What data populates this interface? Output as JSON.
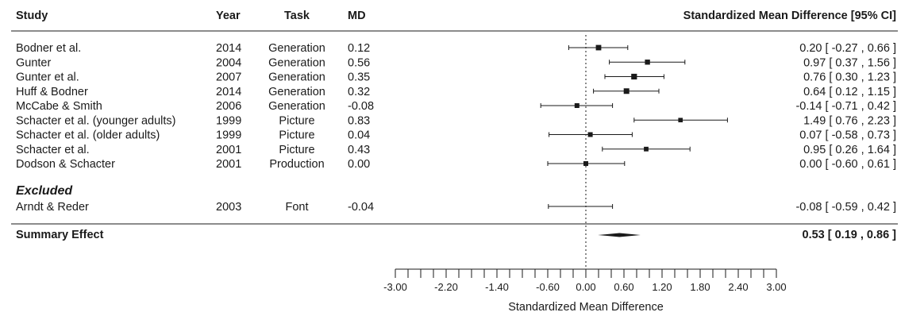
{
  "chart_data": {
    "type": "forest",
    "columns": {
      "study": "Study",
      "year": "Year",
      "task": "Task",
      "md": "MD",
      "effect": "Standardized Mean Difference [95% CI]"
    },
    "studies": [
      {
        "study": "Bodner et al.",
        "year": "2014",
        "task": "Generation",
        "md": "0.12",
        "est": 0.2,
        "lo": -0.27,
        "hi": 0.66,
        "ci_text": "0.20 [ -0.27 , 0.66 ]",
        "weight": 0.7
      },
      {
        "study": "Gunter",
        "year": "2004",
        "task": "Generation",
        "md": "0.56",
        "est": 0.97,
        "lo": 0.37,
        "hi": 1.56,
        "ci_text": "0.97 [  0.37 , 1.56 ]",
        "weight": 0.6
      },
      {
        "study": "Gunter et al.",
        "year": "2007",
        "task": "Generation",
        "md": "0.35",
        "est": 0.76,
        "lo": 0.3,
        "hi": 1.23,
        "ci_text": "0.76 [  0.30 , 1.23 ]",
        "weight": 0.8
      },
      {
        "study": "Huff & Bodner",
        "year": "2014",
        "task": "Generation",
        "md": "0.32",
        "est": 0.64,
        "lo": 0.12,
        "hi": 1.15,
        "ci_text": "0.64 [  0.12 , 1.15 ]",
        "weight": 0.75
      },
      {
        "study": "McCabe & Smith",
        "year": "2006",
        "task": "Generation",
        "md": "-0.08",
        "est": -0.14,
        "lo": -0.71,
        "hi": 0.42,
        "ci_text": "-0.14 [ -0.71 , 0.42 ]",
        "weight": 0.5
      },
      {
        "study": "Schacter et al. (younger adults)",
        "year": "1999",
        "task": "Picture",
        "md": "0.83",
        "est": 1.49,
        "lo": 0.76,
        "hi": 2.23,
        "ci_text": "1.49 [  0.76 , 2.23 ]",
        "weight": 0.4
      },
      {
        "study": "Schacter et al. (older adults)",
        "year": "1999",
        "task": "Picture",
        "md": "0.04",
        "est": 0.07,
        "lo": -0.58,
        "hi": 0.73,
        "ci_text": "0.07 [ -0.58 , 0.73 ]",
        "weight": 0.5
      },
      {
        "study": "Schacter et al.",
        "year": "2001",
        "task": "Picture",
        "md": "0.43",
        "est": 0.95,
        "lo": 0.26,
        "hi": 1.64,
        "ci_text": "0.95 [  0.26 , 1.64 ]",
        "weight": 0.45
      },
      {
        "study": "Dodson & Schacter",
        "year": "2001",
        "task": "Production",
        "md": "0.00",
        "est": 0.0,
        "lo": -0.6,
        "hi": 0.61,
        "ci_text": "0.00 [ -0.60 , 0.61 ]",
        "weight": 0.5
      }
    ],
    "excluded_label": "Excluded",
    "excluded": [
      {
        "study": "Arndt & Reder",
        "year": "2003",
        "task": "Font",
        "md": "-0.04",
        "est": -0.08,
        "lo": -0.59,
        "hi": 0.42,
        "ci_text": "-0.08 [ -0.59 , 0.42 ]"
      }
    ],
    "summary": {
      "label": "Summary Effect",
      "est": 0.53,
      "lo": 0.19,
      "hi": 0.86,
      "ci_text": "0.53 [ 0.19 , 0.86 ]"
    },
    "x_ticks": [
      -3.0,
      -2.2,
      -1.4,
      -0.6,
      0.0,
      0.6,
      1.2,
      1.8,
      2.4,
      3.0
    ],
    "x_tick_labels": [
      "-3.00",
      "-2.20",
      "-1.40",
      "-0.60",
      "0.00",
      "0.60",
      "1.20",
      "1.80",
      "2.40",
      "3.00"
    ],
    "x_minor_step": 0.2,
    "xlim": [
      -3,
      3
    ],
    "xlabel": "Standardized Mean Difference",
    "reference_line": 0
  }
}
